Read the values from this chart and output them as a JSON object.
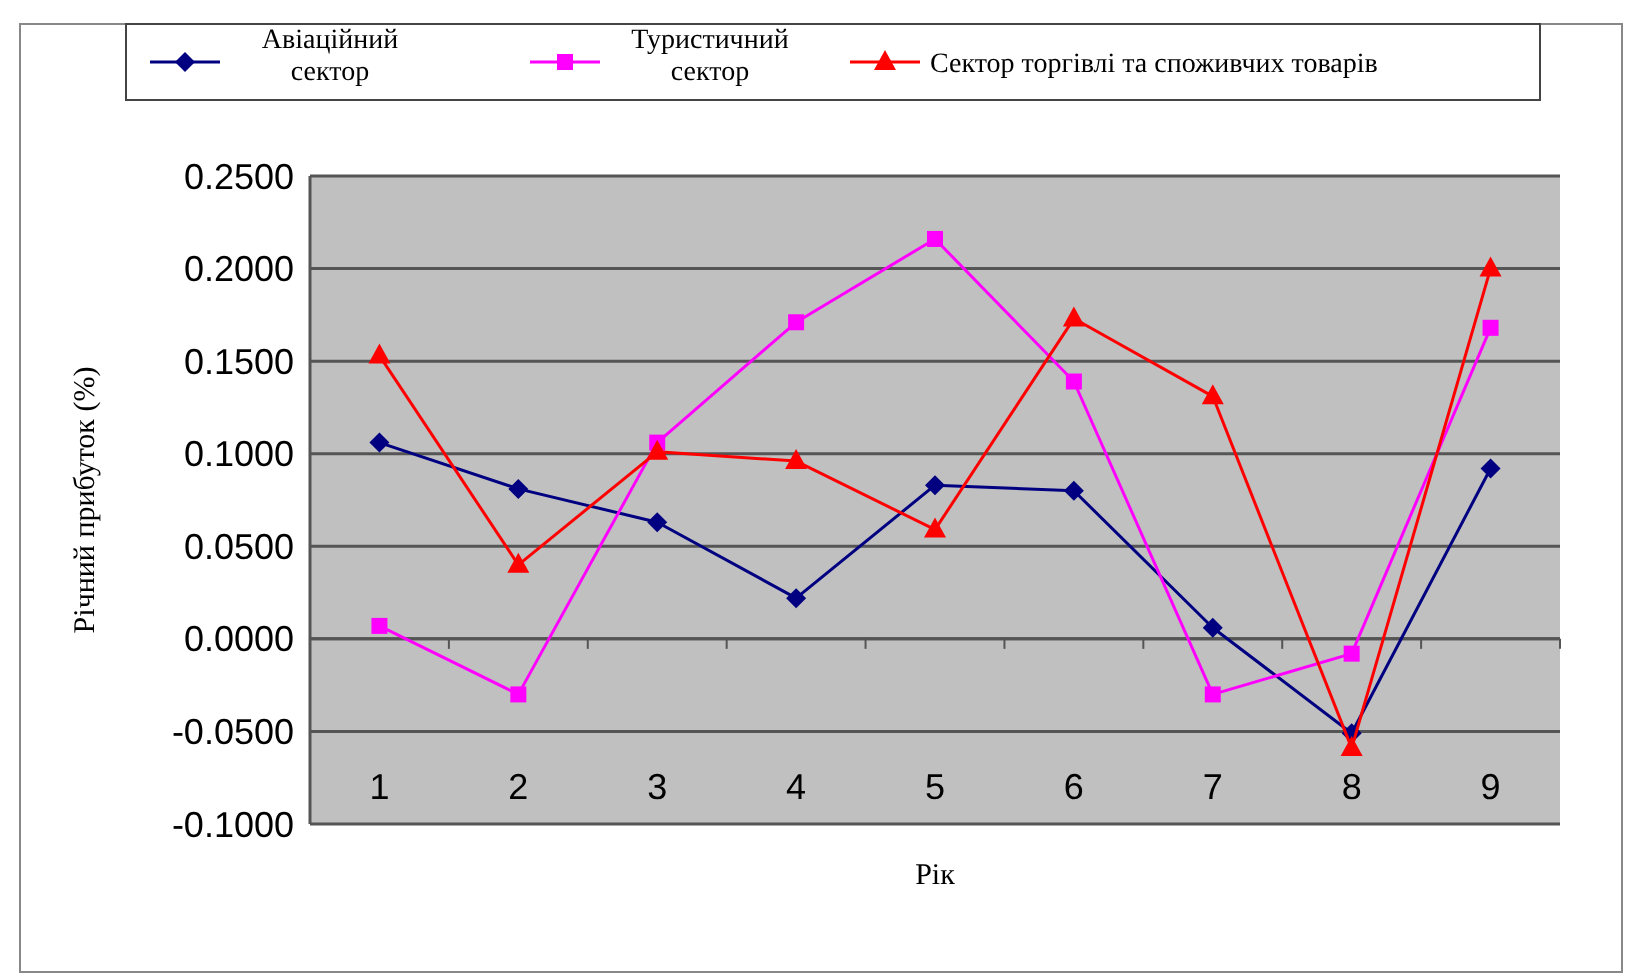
{
  "chart_data": {
    "type": "line",
    "xlabel": "Рік",
    "ylabel": "Річний прибуток (%)",
    "categories": [
      "1",
      "2",
      "3",
      "4",
      "5",
      "6",
      "7",
      "8",
      "9"
    ],
    "ylim": [
      -0.1,
      0.25
    ],
    "yticks": [
      {
        "value": -0.1,
        "label": "-0.1000"
      },
      {
        "value": -0.05,
        "label": "-0.0500"
      },
      {
        "value": 0,
        "label": "0.0000"
      },
      {
        "value": 0.05,
        "label": "0.0500"
      },
      {
        "value": 0.1,
        "label": "0.1000"
      },
      {
        "value": 0.15,
        "label": "0.1500"
      },
      {
        "value": 0.2,
        "label": "0.2000"
      },
      {
        "value": 0.25,
        "label": "0.2500"
      }
    ],
    "grid": "y",
    "legend": "top",
    "series": [
      {
        "name": "Авіаційний\nсектор",
        "color": "#000080",
        "marker": "diamond",
        "values": [
          0.106,
          0.081,
          0.063,
          0.022,
          0.083,
          0.08,
          0.006,
          -0.051,
          0.092
        ]
      },
      {
        "name": "Туристичний\nсектор",
        "color": "#ff00ff",
        "marker": "square",
        "values": [
          0.007,
          -0.03,
          0.106,
          0.171,
          0.216,
          0.139,
          -0.03,
          -0.008,
          0.168
        ]
      },
      {
        "name": "Сектор торгівлі та споживчих товарів",
        "color": "#ff0000",
        "marker": "triangle",
        "values": [
          0.153,
          0.04,
          0.101,
          0.096,
          0.059,
          0.173,
          0.131,
          -0.059,
          0.2
        ]
      }
    ]
  }
}
